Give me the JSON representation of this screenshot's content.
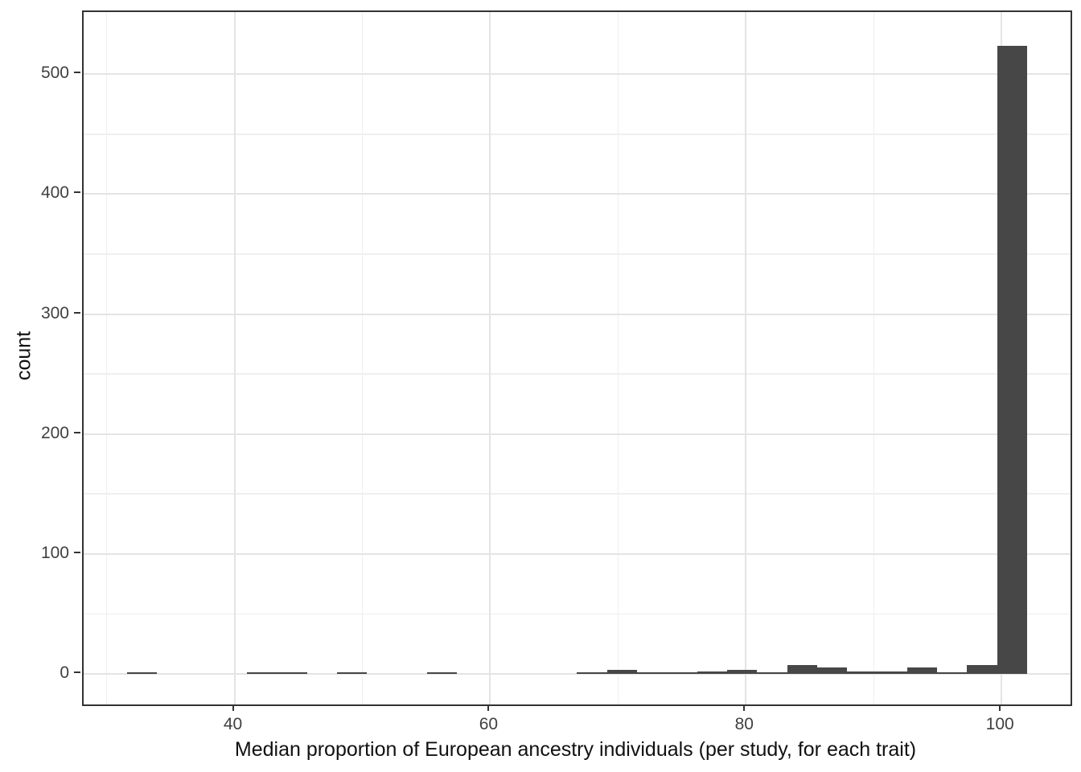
{
  "chart_data": {
    "type": "bar",
    "subtype": "histogram",
    "title": "",
    "xlabel": "Median proportion of European ancestry individuals (per study, for each trait)",
    "ylabel": "count",
    "bin_start": 31.6,
    "binwidth": 2.35,
    "bin_centers": [
      32.77,
      35.12,
      37.47,
      39.81,
      42.16,
      44.51,
      46.85,
      49.2,
      51.55,
      53.89,
      56.24,
      58.59,
      60.93,
      63.28,
      65.63,
      67.97,
      70.32,
      72.67,
      75.01,
      77.36,
      79.71,
      82.05,
      84.4,
      86.75,
      89.09,
      91.44,
      93.79,
      96.13,
      98.48,
      100.83
    ],
    "counts": [
      1,
      0,
      0,
      0,
      1,
      1,
      0,
      1,
      0,
      0,
      1,
      0,
      0,
      0,
      0,
      1,
      3,
      1,
      1,
      2,
      3,
      1,
      7,
      5,
      2,
      2,
      5,
      1,
      7,
      524
    ],
    "x_ticks": [
      40,
      60,
      80,
      100
    ],
    "x_minor_ticks": [
      30,
      50,
      70,
      90
    ],
    "y_ticks": [
      0,
      100,
      200,
      300,
      400,
      500
    ],
    "y_minor_ticks": [
      50,
      150,
      250,
      350,
      450
    ],
    "xlim": [
      28.2,
      105.4
    ],
    "ylim": [
      -25.6,
      551.9
    ],
    "grid": true,
    "legend": false,
    "colors": {
      "bar": "#474747",
      "panel_border": "#333333",
      "grid_major": "#e4e4e4",
      "grid_minor": "#efefef",
      "tick_mark": "#333333",
      "tick_label": "#404040",
      "axis_title": "#111111",
      "background": "#ffffff"
    }
  }
}
